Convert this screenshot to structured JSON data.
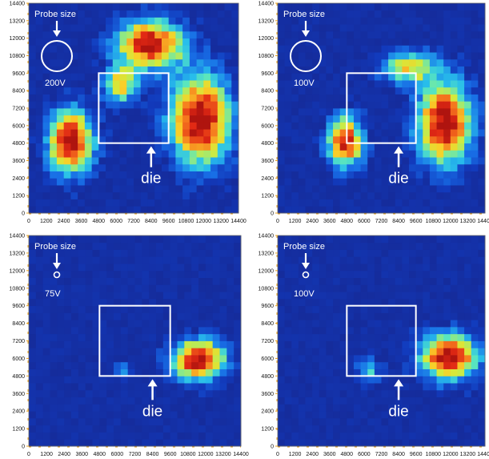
{
  "chart_data": [
    {
      "type": "heatmap",
      "probe_label": "Probe size",
      "voltage": "200V",
      "die_label": "die",
      "probe_scale": "large",
      "x_ticks": [
        "0",
        "1200",
        "2400",
        "3600",
        "4800",
        "6000",
        "7200",
        "8400",
        "9600",
        "10800",
        "12000",
        "13200",
        "14400"
      ],
      "y_ticks": [
        "0",
        "1200",
        "2400",
        "3600",
        "4800",
        "6000",
        "7200",
        "8400",
        "9600",
        "10800",
        "12000",
        "13200",
        "14400"
      ],
      "xlim": [
        0,
        14400
      ],
      "ylim": [
        0,
        14400
      ],
      "die_box": {
        "x": [
          4800,
          9600
        ],
        "y": [
          4800,
          9600
        ]
      },
      "hotspots": [
        {
          "x": 11800,
          "y": 6400,
          "sx": 2000,
          "sy": 3000,
          "peak": 1.0
        },
        {
          "x": 2900,
          "y": 4900,
          "sx": 1500,
          "sy": 2100,
          "peak": 0.98
        },
        {
          "x": 8300,
          "y": 11600,
          "sx": 2200,
          "sy": 1600,
          "peak": 0.95
        },
        {
          "x": 6300,
          "y": 8800,
          "sx": 1100,
          "sy": 1200,
          "peak": 0.65
        }
      ]
    },
    {
      "type": "heatmap",
      "probe_label": "Probe size",
      "voltage": "100V",
      "die_label": "die",
      "probe_scale": "large",
      "x_ticks": [
        "0",
        "1200",
        "2400",
        "3600",
        "4800",
        "6000",
        "7200",
        "8400",
        "9600",
        "10800",
        "12000",
        "13200",
        "14400"
      ],
      "y_ticks": [
        "0",
        "1200",
        "2400",
        "3600",
        "4800",
        "6000",
        "7200",
        "8400",
        "9600",
        "10800",
        "12000",
        "13200",
        "14400"
      ],
      "xlim": [
        0,
        14400
      ],
      "ylim": [
        0,
        14400
      ],
      "die_box": {
        "x": [
          4800,
          9600
        ],
        "y": [
          4800,
          9600
        ]
      },
      "hotspots": [
        {
          "x": 11600,
          "y": 6200,
          "sx": 1800,
          "sy": 2700,
          "peak": 1.0
        },
        {
          "x": 4700,
          "y": 4900,
          "sx": 1200,
          "sy": 1700,
          "peak": 0.9
        },
        {
          "x": 9000,
          "y": 10000,
          "sx": 1800,
          "sy": 1100,
          "peak": 0.6
        }
      ]
    },
    {
      "type": "heatmap",
      "probe_label": "Probe size",
      "voltage": "75V",
      "die_label": "die",
      "probe_scale": "small",
      "x_ticks": [
        "0",
        "1200",
        "2400",
        "3600",
        "4800",
        "6000",
        "7200",
        "8400",
        "9600",
        "10800",
        "12000",
        "13200",
        "14400"
      ],
      "y_ticks": [
        "0",
        "1200",
        "2400",
        "3600",
        "4800",
        "6000",
        "7200",
        "8400",
        "9600",
        "10800",
        "12000",
        "13200",
        "14400"
      ],
      "xlim": [
        0,
        14400
      ],
      "ylim": [
        0,
        14400
      ],
      "die_box": {
        "x": [
          4800,
          9600
        ],
        "y": [
          4800,
          9600
        ]
      },
      "hotspots": [
        {
          "x": 11500,
          "y": 5900,
          "sx": 1700,
          "sy": 1300,
          "peak": 1.0
        },
        {
          "x": 6400,
          "y": 5300,
          "sx": 500,
          "sy": 550,
          "peak": 0.28
        }
      ]
    },
    {
      "type": "heatmap",
      "probe_label": "Probe size",
      "voltage": "100V",
      "die_label": "die",
      "probe_scale": "small",
      "x_ticks": [
        "0",
        "1200",
        "2400",
        "3600",
        "4800",
        "6000",
        "7200",
        "8400",
        "9600",
        "10800",
        "12000",
        "13200",
        "14400"
      ],
      "y_ticks": [
        "0",
        "1200",
        "2400",
        "3600",
        "4800",
        "6000",
        "7200",
        "8400",
        "9600",
        "10800",
        "12000",
        "13200",
        "14400"
      ],
      "xlim": [
        0,
        14400
      ],
      "ylim": [
        0,
        14400
      ],
      "die_box": {
        "x": [
          4800,
          9600
        ],
        "y": [
          4800,
          9600
        ]
      },
      "hotspots": [
        {
          "x": 11900,
          "y": 6100,
          "sx": 1900,
          "sy": 1500,
          "peak": 1.0
        },
        {
          "x": 6300,
          "y": 5200,
          "sx": 800,
          "sy": 850,
          "peak": 0.4
        }
      ]
    }
  ]
}
